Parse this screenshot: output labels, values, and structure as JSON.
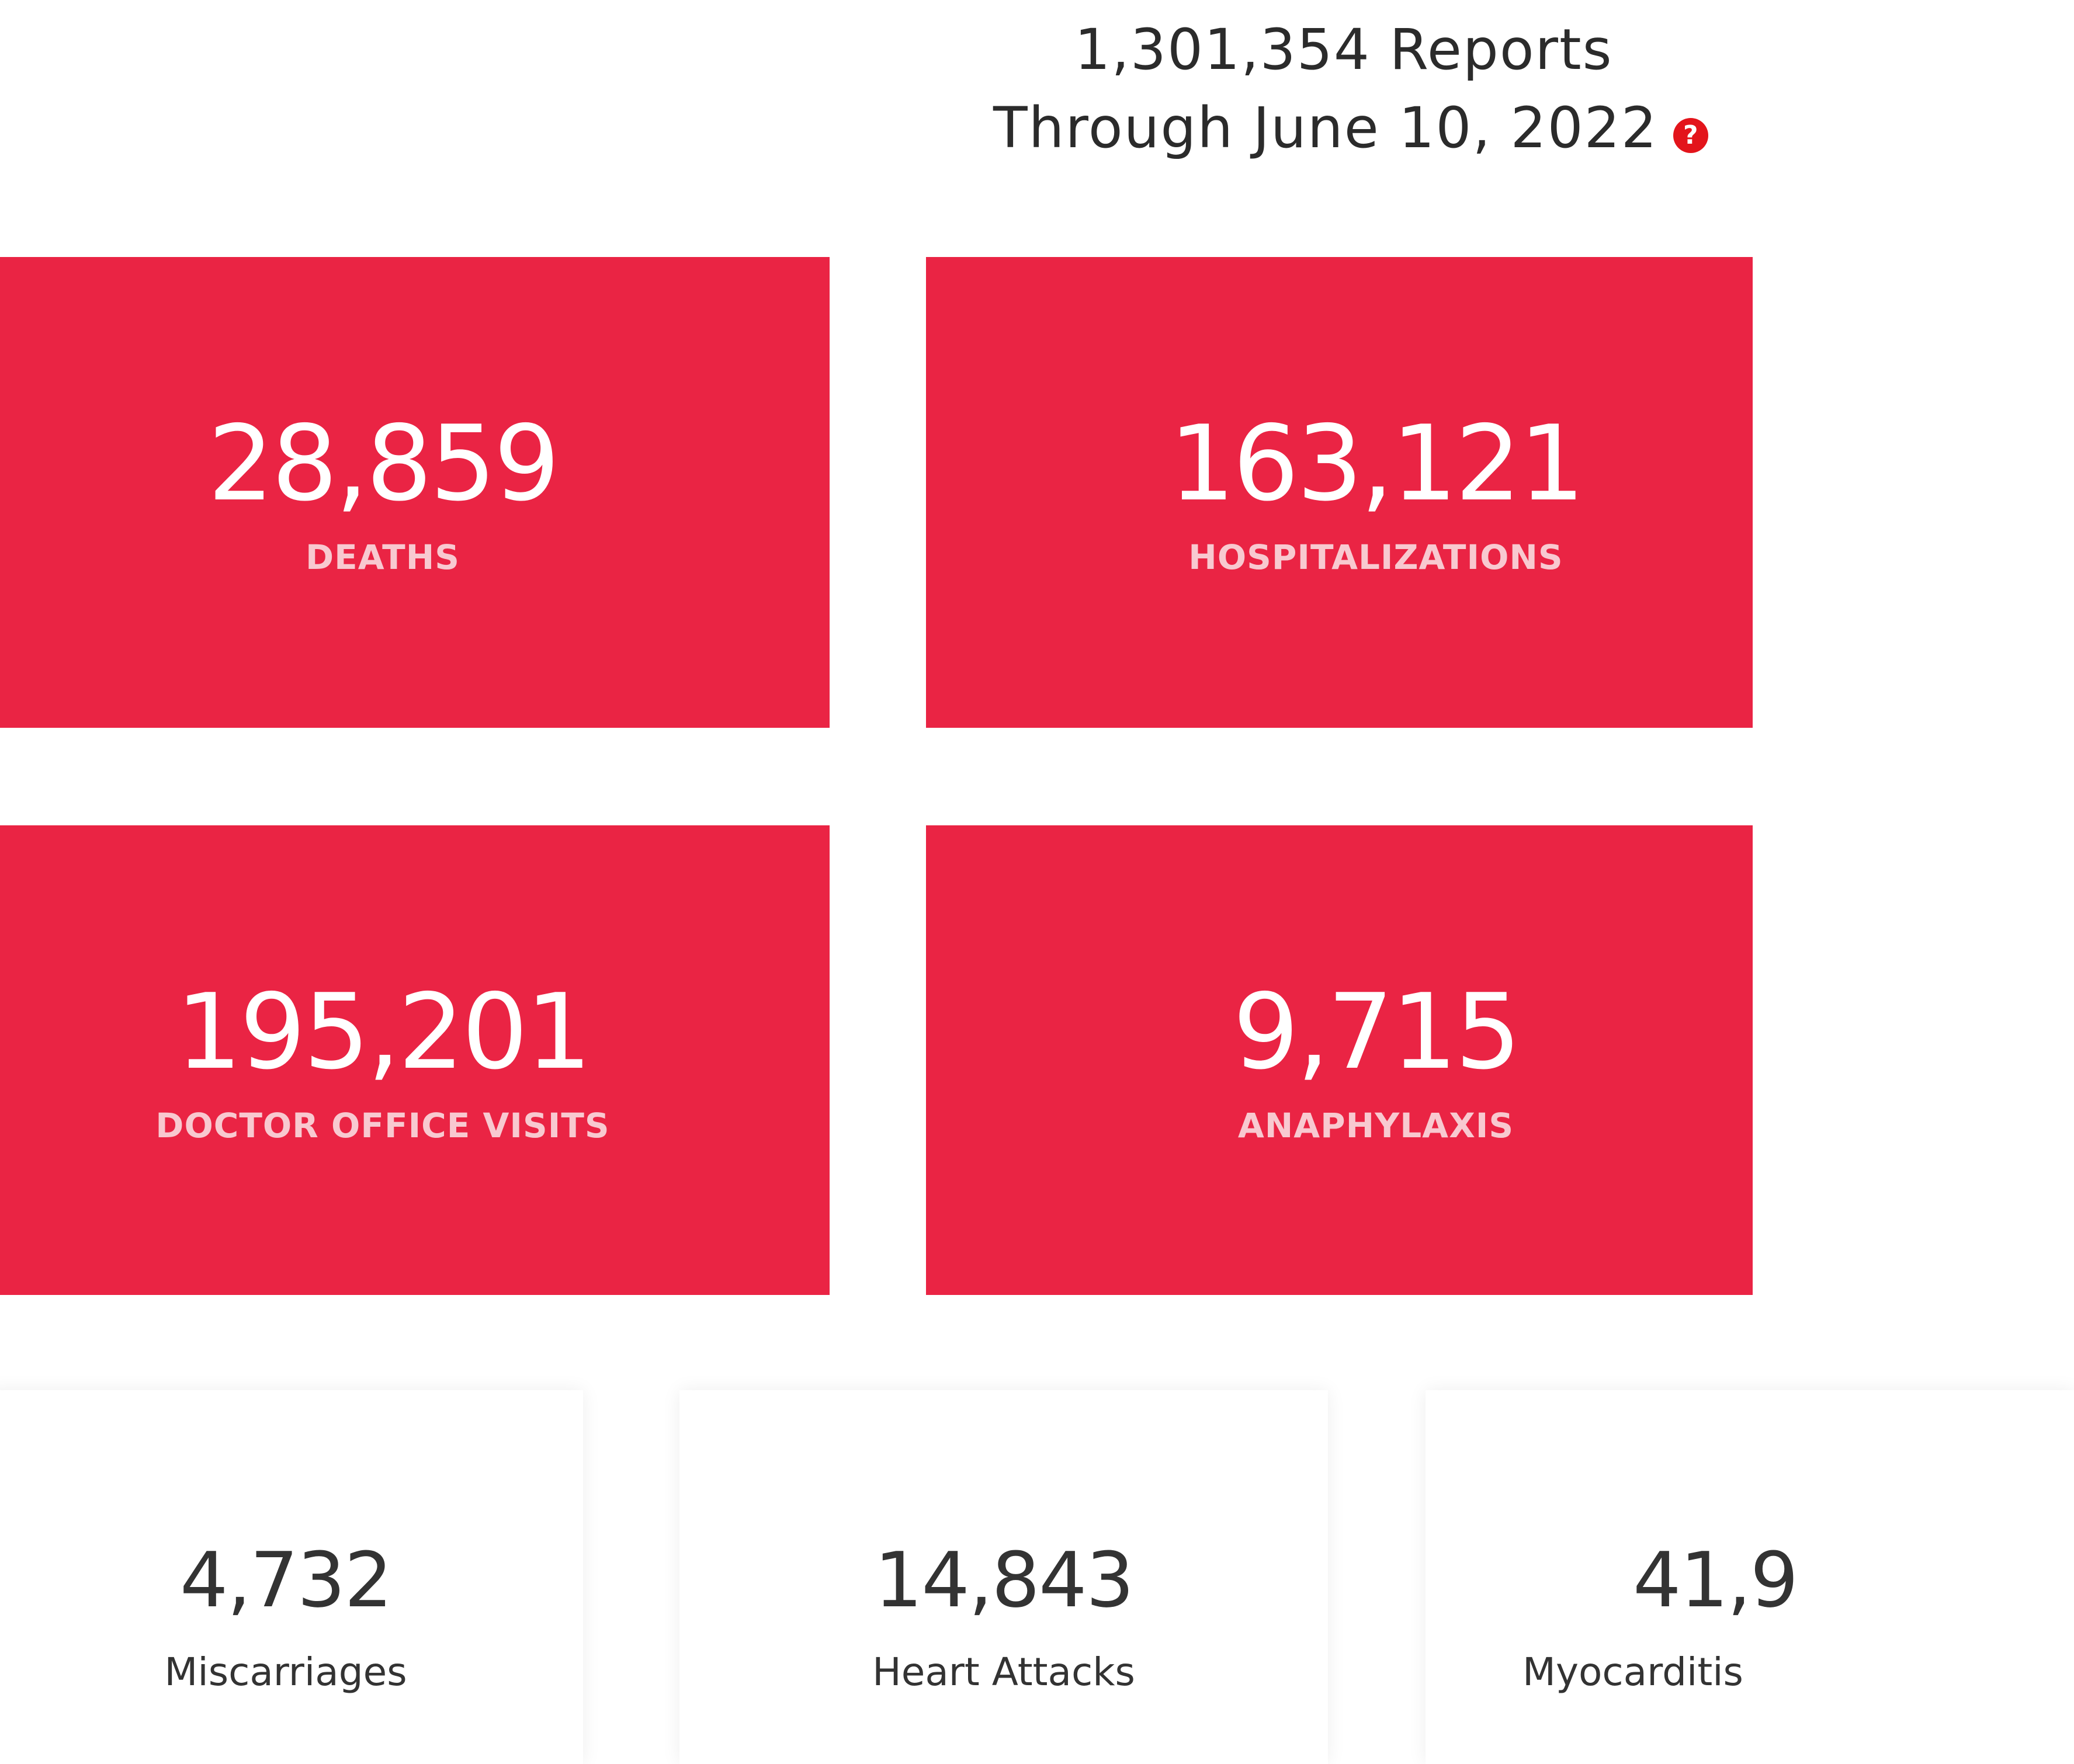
{
  "header": {
    "reports_line": "1,301,354 Reports",
    "through_line": "Through June 10, 2022",
    "help_icon": "question-circle-icon",
    "help_icon_glyph": "?"
  },
  "colors": {
    "card_red": "#ea2444",
    "card_label": "#f8c9d0",
    "help_red": "#e3141b",
    "text_dark": "#333333"
  },
  "primary_stats": [
    {
      "value": "28,859",
      "label": "DEATHS"
    },
    {
      "value": "163,121",
      "label": "HOSPITALIZATIONS"
    },
    {
      "value": "195,201",
      "label": "DOCTOR OFFICE VISITS"
    },
    {
      "value": "9,715",
      "label": "ANAPHYLAXIS"
    }
  ],
  "secondary_stats": [
    {
      "value": "4,732",
      "label": "Miscarriages"
    },
    {
      "value": "14,843",
      "label": "Heart Attacks"
    },
    {
      "value": "41,9",
      "label": "Myocarditis"
    }
  ]
}
